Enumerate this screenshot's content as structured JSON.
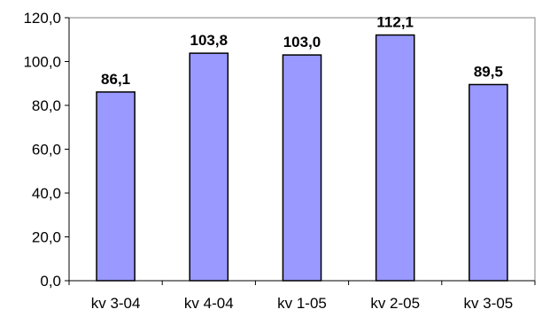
{
  "chart_data": {
    "type": "bar",
    "categories": [
      "kv 3-04",
      "kv 4-04",
      "kv 1-05",
      "kv 2-05",
      "kv 3-05"
    ],
    "values": [
      86.1,
      103.8,
      103.0,
      112.1,
      89.5
    ],
    "data_labels": [
      "86,1",
      "103,8",
      "103,0",
      "112,1",
      "89,5"
    ],
    "title": "",
    "xlabel": "",
    "ylabel": "",
    "ylim": [
      0,
      120
    ],
    "yticks": [
      0,
      20,
      40,
      60,
      80,
      100,
      120
    ],
    "ytick_labels": [
      "0,0",
      "20,0",
      "40,0",
      "60,0",
      "80,0",
      "100,0",
      "120,0"
    ],
    "grid": false,
    "legend": "none",
    "bar_color": "#9999ff",
    "bar_edge_color": "#000000"
  }
}
